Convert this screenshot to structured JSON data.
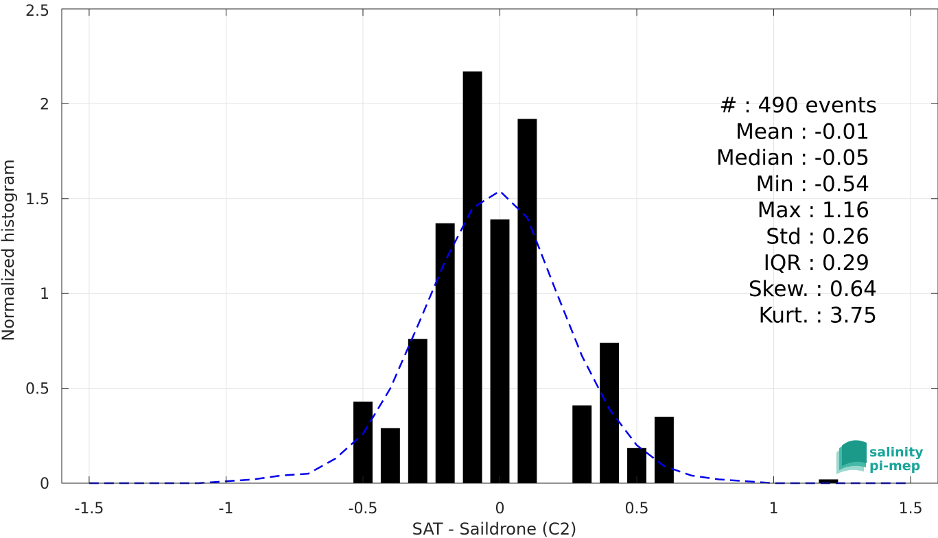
{
  "chart_data": {
    "type": "bar",
    "xlabel": "SAT - Saildrone (C2)",
    "ylabel": "Normalized histogram",
    "xlim": [
      -1.6,
      1.6
    ],
    "ylim": [
      0,
      2.5
    ],
    "xticks": [
      -1.5,
      -1,
      -0.5,
      0,
      0.5,
      1,
      1.5
    ],
    "xtick_labels": [
      "-1.5",
      "-1",
      "-0.5",
      "0",
      "0.5",
      "1",
      "1.5"
    ],
    "yticks": [
      0,
      0.5,
      1,
      1.5,
      2,
      2.5
    ],
    "ytick_labels": [
      "0",
      "0.5",
      "1",
      "1.5",
      "2",
      "2.5"
    ],
    "grid": true,
    "bar_width": 0.07,
    "bar_color": "#000000",
    "bars": [
      {
        "x": -0.5,
        "value": 0.43
      },
      {
        "x": -0.4,
        "value": 0.29
      },
      {
        "x": -0.3,
        "value": 0.76
      },
      {
        "x": -0.2,
        "value": 1.37
      },
      {
        "x": -0.1,
        "value": 2.17
      },
      {
        "x": 0.0,
        "value": 1.39
      },
      {
        "x": 0.1,
        "value": 1.92
      },
      {
        "x": 0.3,
        "value": 0.41
      },
      {
        "x": 0.4,
        "value": 0.74
      },
      {
        "x": 0.5,
        "value": 0.185
      },
      {
        "x": 0.6,
        "value": 0.35
      },
      {
        "x": 1.2,
        "value": 0.02
      }
    ],
    "fit_curve": {
      "style": "dashed",
      "color": "#0000ee",
      "x": [
        -1.5,
        -1.3,
        -1.1,
        -1.0,
        -0.9,
        -0.8,
        -0.7,
        -0.6,
        -0.5,
        -0.4,
        -0.3,
        -0.2,
        -0.1,
        0.0,
        0.1,
        0.2,
        0.3,
        0.4,
        0.5,
        0.6,
        0.7,
        0.8,
        0.9,
        1.0,
        1.1,
        1.3,
        1.5
      ],
      "y": [
        0,
        0,
        0,
        0.01,
        0.02,
        0.04,
        0.05,
        0.13,
        0.26,
        0.5,
        0.83,
        1.17,
        1.45,
        1.54,
        1.4,
        1.03,
        0.67,
        0.39,
        0.2,
        0.09,
        0.04,
        0.02,
        0.01,
        0.0,
        0.0,
        0.0,
        0.0
      ]
    },
    "stats": [
      "#  : 490 events",
      "Mean : -0.01",
      "Median : -0.05",
      "Min : -0.54",
      "Max : 1.16",
      "Std : 0.26",
      "IQR : 0.29",
      "Skew. : 0.64",
      "Kurt. : 3.75"
    ],
    "logo": {
      "line1": "salinity",
      "line2": "pi-mep",
      "color": "#1aa59a"
    }
  }
}
